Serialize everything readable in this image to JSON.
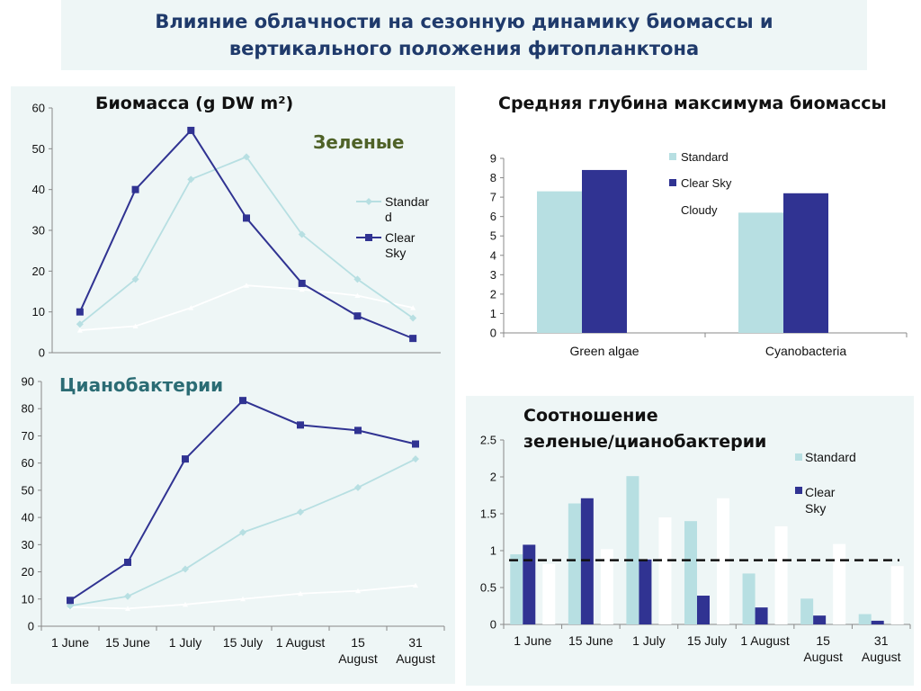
{
  "page": {
    "title_line1": "Влияние облачности на сезонную динамику биомассы и",
    "title_line2": "вертикального положения фитопланктона"
  },
  "colors": {
    "standard": "#b7dfe2",
    "clear_sky": "#303392",
    "cloudy": "#ffffff",
    "green_label": "#4f6228",
    "cyano_label": "#2b6c74"
  },
  "chart_data": [
    {
      "id": "green-biomass",
      "type": "line",
      "title": "Биомасса (g DW m²)",
      "subtitle": "Зеленые",
      "categories": [
        "1 June",
        "15 June",
        "1 July",
        "15 July",
        "1 August",
        "15 August",
        "31 August"
      ],
      "ylim": [
        0,
        60
      ],
      "yticks": [
        0,
        10,
        20,
        30,
        40,
        50,
        60
      ],
      "legend_placement": "right",
      "series": [
        {
          "name": "Standard",
          "legend_label": "Standar d",
          "values": [
            7,
            18,
            42.5,
            48,
            29,
            18,
            8.5
          ]
        },
        {
          "name": "Clear Sky",
          "values": [
            10,
            40,
            54.5,
            33,
            17,
            9,
            3.5
          ]
        },
        {
          "name": "Cloudy",
          "values": [
            5.5,
            6.5,
            11,
            16.5,
            15.5,
            14,
            11
          ]
        }
      ]
    },
    {
      "id": "cyano-biomass",
      "type": "line",
      "title": "Цианобактерии",
      "categories": [
        "1 June",
        "15 June",
        "1 July",
        "15 July",
        "1 August",
        "15 August",
        "31 August"
      ],
      "category_lines": [
        [
          "1 June"
        ],
        [
          "15 June"
        ],
        [
          "1 July"
        ],
        [
          "15 July"
        ],
        [
          "1 August"
        ],
        [
          "15",
          "August"
        ],
        [
          "31",
          "August"
        ]
      ],
      "ylim": [
        0,
        90
      ],
      "yticks": [
        0,
        10,
        20,
        30,
        40,
        50,
        60,
        70,
        80,
        90
      ],
      "series": [
        {
          "name": "Standard",
          "values": [
            7.5,
            11,
            21,
            34.5,
            42,
            51,
            61.5
          ]
        },
        {
          "name": "Clear Sky",
          "values": [
            9.5,
            23.5,
            61.5,
            83,
            74,
            72,
            67
          ]
        },
        {
          "name": "Cloudy",
          "values": [
            7,
            6.5,
            8,
            10,
            12,
            13,
            15
          ]
        }
      ]
    },
    {
      "id": "depth-max",
      "type": "bar",
      "title": "Средняя глубина максимума биомассы",
      "categories": [
        "Green algae",
        "Cyanobacteria"
      ],
      "ylim": [
        0,
        9
      ],
      "yticks": [
        0,
        1,
        2,
        3,
        4,
        5,
        6,
        7,
        8,
        9
      ],
      "legend_placement": "top-right",
      "series": [
        {
          "name": "Standard",
          "values": [
            7.3,
            6.2
          ]
        },
        {
          "name": "Clear Sky",
          "values": [
            8.4,
            7.2
          ]
        },
        {
          "name": "Cloudy",
          "values": [
            0,
            0
          ]
        }
      ]
    },
    {
      "id": "ratio",
      "type": "bar",
      "title_line1": "Соотношение",
      "title_line2": "зеленые/цианобактерии",
      "categories": [
        "1 June",
        "15 June",
        "1 July",
        "15 July",
        "1 August",
        "15 August",
        "31 August"
      ],
      "category_lines": [
        [
          "1 June"
        ],
        [
          "15 June"
        ],
        [
          "1 July"
        ],
        [
          "15 July"
        ],
        [
          "1 August"
        ],
        [
          "15",
          "August"
        ],
        [
          "31",
          "August"
        ]
      ],
      "ylim": [
        0,
        2.5
      ],
      "yticks": [
        "0",
        "0.5",
        "1",
        "1.5",
        "2",
        "2.5"
      ],
      "reference_line": 0.87,
      "legend_placement": "right",
      "legend_labels": [
        [
          "Standard"
        ],
        [
          "Clear",
          "Sky"
        ]
      ],
      "series": [
        {
          "name": "Standard",
          "values": [
            0.95,
            1.64,
            2.01,
            1.4,
            0.69,
            0.35,
            0.14
          ]
        },
        {
          "name": "Clear Sky",
          "values": [
            1.08,
            1.71,
            0.88,
            0.39,
            0.23,
            0.12,
            0.05
          ]
        },
        {
          "name": "Cloudy",
          "values": [
            0.82,
            1.02,
            1.45,
            1.71,
            1.33,
            1.09,
            0.79
          ]
        }
      ]
    }
  ]
}
